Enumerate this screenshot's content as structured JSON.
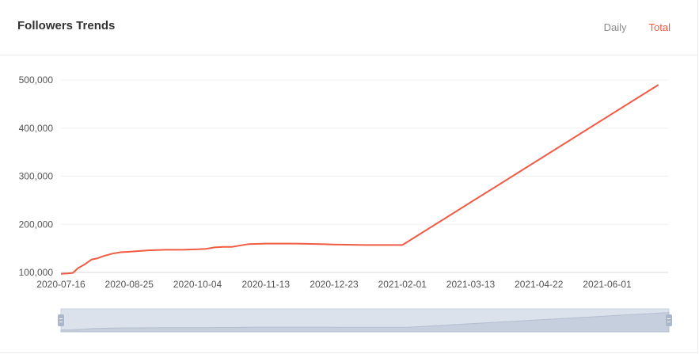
{
  "header": {
    "title": "Followers Trends",
    "tabs": [
      {
        "label": "Daily",
        "active": false
      },
      {
        "label": "Total",
        "active": true
      }
    ]
  },
  "colors": {
    "line": "#ef5b43",
    "active_tab": "#ef5b43",
    "inactive_tab": "#8c8c8c",
    "slider_fill": "#dbe2ec",
    "slider_handle": "#a9b6cc"
  },
  "chart_data": {
    "type": "line",
    "title": "",
    "xlabel": "",
    "ylabel": "",
    "ylim": [
      100000,
      500000
    ],
    "yticks": [
      "100,000",
      "200,000",
      "300,000",
      "400,000",
      "500,000"
    ],
    "xticks": [
      "2020-07-16",
      "2020-08-25",
      "2020-10-04",
      "2020-11-13",
      "2020-12-23",
      "2021-02-01",
      "2021-03-13",
      "2021-04-22",
      "2021-06-01"
    ],
    "grid": true,
    "series": [
      {
        "x": [
          "2020-07-16",
          "2020-07-20",
          "2020-07-23",
          "2020-07-26",
          "2020-07-30",
          "2020-08-03",
          "2020-08-06",
          "2020-08-10",
          "2020-08-15",
          "2020-08-20",
          "2020-08-25",
          "2020-09-05",
          "2020-09-15",
          "2020-09-25",
          "2020-10-04",
          "2020-10-09",
          "2020-10-14",
          "2020-10-19",
          "2020-10-24",
          "2020-11-03",
          "2020-11-13",
          "2020-11-30",
          "2020-12-15",
          "2020-12-23",
          "2021-01-10",
          "2021-02-01",
          "2021-07-01"
        ],
        "values": [
          97000,
          98000,
          99000,
          109000,
          117000,
          127000,
          129000,
          134000,
          139000,
          142000,
          143000,
          146000,
          147000,
          147000,
          148000,
          149000,
          152000,
          153000,
          153000,
          159000,
          160000,
          160000,
          159000,
          158000,
          157000,
          157000,
          490000
        ]
      }
    ]
  },
  "slider": {
    "start": "2020-07-16",
    "end": "2021-07-01"
  }
}
